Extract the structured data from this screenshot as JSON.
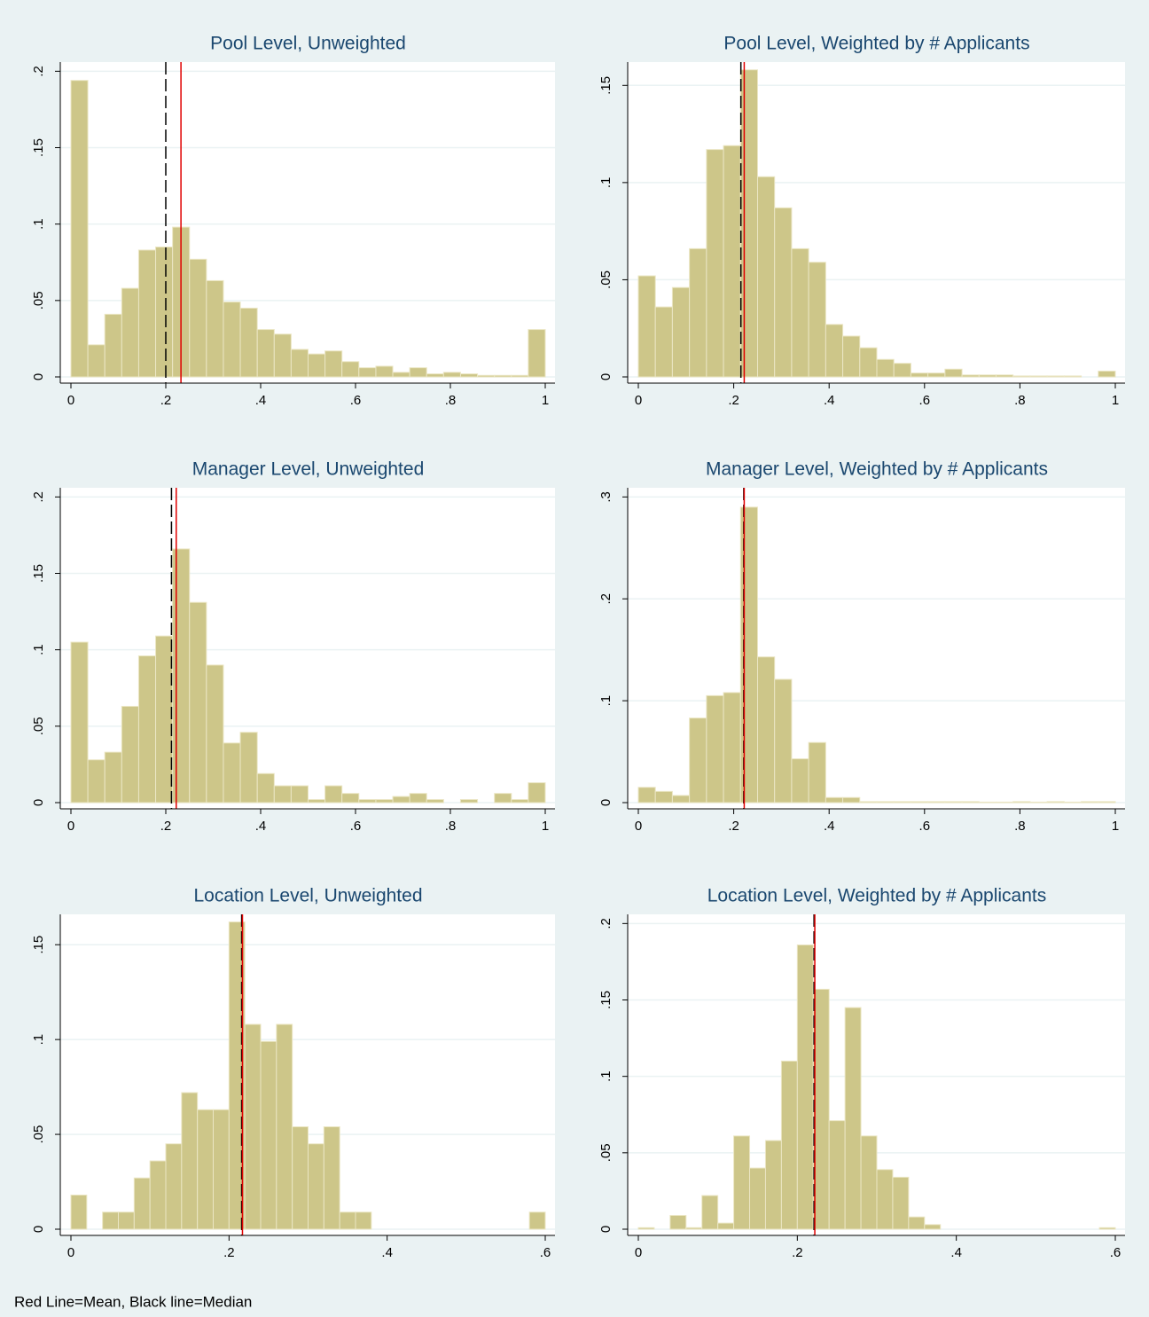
{
  "chart_data": [
    {
      "type": "histogram",
      "title": "Pool Level, Unweighted",
      "color": "#cdc689",
      "mean_color": "#e00000",
      "median_color": "#000000",
      "bins": [
        0,
        0.0357,
        0.0714,
        0.1071,
        0.1429,
        0.1786,
        0.2143,
        0.25,
        0.2857,
        0.3214,
        0.3571,
        0.3929,
        0.4286,
        0.4643,
        0.5,
        0.5357,
        0.5714,
        0.6071,
        0.6429,
        0.6786,
        0.7143,
        0.75,
        0.7857,
        0.8214,
        0.8571,
        0.8929,
        0.9286,
        0.9643,
        1
      ],
      "values": [
        0.194,
        0.021,
        0.041,
        0.058,
        0.083,
        0.085,
        0.098,
        0.077,
        0.063,
        0.049,
        0.045,
        0.031,
        0.028,
        0.018,
        0.015,
        0.017,
        0.01,
        0.006,
        0.007,
        0.003,
        0.006,
        0.002,
        0.003,
        0.002,
        0.001,
        0.001,
        0.001,
        0.031
      ],
      "mean": 0.232,
      "median": 0.2,
      "xlim": [
        0,
        1
      ],
      "ylim": [
        0,
        0.206
      ],
      "xticks": [
        0,
        {
          "value": 0.2,
          "label": ".2"
        },
        {
          "value": 0.4,
          "label": ".4"
        },
        {
          "value": 0.6,
          "label": ".6"
        },
        {
          "value": 0.8,
          "label": ".8"
        },
        1
      ],
      "yticks": [
        0,
        {
          "value": 0.05,
          "label": ".05"
        },
        {
          "value": 0.1,
          "label": ".1"
        },
        {
          "value": 0.15,
          "label": ".15"
        },
        {
          "value": 0.2,
          "label": ".2"
        }
      ],
      "grid": true
    },
    {
      "type": "histogram",
      "title": "Pool Level, Weighted by # Applicants",
      "color": "#cdc689",
      "mean_color": "#e00000",
      "median_color": "#000000",
      "bins": [
        0,
        0.0357,
        0.0714,
        0.1071,
        0.1429,
        0.1786,
        0.2143,
        0.25,
        0.2857,
        0.3214,
        0.3571,
        0.3929,
        0.4286,
        0.4643,
        0.5,
        0.5357,
        0.5714,
        0.6071,
        0.6429,
        0.6786,
        0.7143,
        0.75,
        0.7857,
        0.8214,
        0.8571,
        0.8929,
        0.9286,
        0.9643,
        1
      ],
      "values": [
        0.052,
        0.036,
        0.046,
        0.066,
        0.117,
        0.119,
        0.158,
        0.103,
        0.087,
        0.066,
        0.059,
        0.027,
        0.021,
        0.015,
        0.009,
        0.007,
        0.002,
        0.002,
        0.004,
        0.001,
        0.001,
        0.001,
        0.0005,
        0.0005,
        0.0005,
        0.0005,
        0,
        0.003
      ],
      "mean": 0.222,
      "median": 0.215,
      "xlim": [
        0,
        1
      ],
      "ylim": [
        0,
        0.162
      ],
      "xticks": [
        0,
        {
          "value": 0.2,
          "label": ".2"
        },
        {
          "value": 0.4,
          "label": ".4"
        },
        {
          "value": 0.6,
          "label": ".6"
        },
        {
          "value": 0.8,
          "label": ".8"
        },
        1
      ],
      "yticks": [
        0,
        {
          "value": 0.05,
          "label": ".05"
        },
        {
          "value": 0.1,
          "label": ".1"
        },
        {
          "value": 0.15,
          "label": ".15"
        }
      ],
      "grid": true
    },
    {
      "type": "histogram",
      "title": "Manager Level, Unweighted",
      "color": "#cdc689",
      "mean_color": "#e00000",
      "median_color": "#000000",
      "bins": [
        0,
        0.0357,
        0.0714,
        0.1071,
        0.1429,
        0.1786,
        0.2143,
        0.25,
        0.2857,
        0.3214,
        0.3571,
        0.3929,
        0.4286,
        0.4643,
        0.5,
        0.5357,
        0.5714,
        0.6071,
        0.6429,
        0.6786,
        0.7143,
        0.75,
        0.7857,
        0.8214,
        0.8571,
        0.8929,
        0.9286,
        0.9643,
        1
      ],
      "values": [
        0.105,
        0.028,
        0.033,
        0.063,
        0.096,
        0.109,
        0.166,
        0.131,
        0.09,
        0.039,
        0.046,
        0.019,
        0.011,
        0.011,
        0.002,
        0.011,
        0.006,
        0.002,
        0.002,
        0.004,
        0.006,
        0.002,
        0,
        0.002,
        0,
        0.006,
        0.002,
        0.013
      ],
      "mean": 0.222,
      "median": 0.212,
      "xlim": [
        0,
        1
      ],
      "ylim": [
        0,
        0.206
      ],
      "xticks": [
        0,
        {
          "value": 0.2,
          "label": ".2"
        },
        {
          "value": 0.4,
          "label": ".4"
        },
        {
          "value": 0.6,
          "label": ".6"
        },
        {
          "value": 0.8,
          "label": ".8"
        },
        1
      ],
      "yticks": [
        0,
        {
          "value": 0.05,
          "label": ".05"
        },
        {
          "value": 0.1,
          "label": ".1"
        },
        {
          "value": 0.15,
          "label": ".15"
        },
        {
          "value": 0.2,
          "label": ".2"
        }
      ],
      "grid": true
    },
    {
      "type": "histogram",
      "title": "Manager Level, Weighted by # Applicants",
      "color": "#cdc689",
      "mean_color": "#e00000",
      "median_color": "#000000",
      "bins": [
        0,
        0.0357,
        0.0714,
        0.1071,
        0.1429,
        0.1786,
        0.2143,
        0.25,
        0.2857,
        0.3214,
        0.3571,
        0.3929,
        0.4286,
        0.4643,
        0.5,
        0.5357,
        0.5714,
        0.6071,
        0.6429,
        0.6786,
        0.7143,
        0.75,
        0.7857,
        0.8214,
        0.8571,
        0.8929,
        0.9286,
        0.9643,
        1
      ],
      "values": [
        0.015,
        0.011,
        0.007,
        0.083,
        0.105,
        0.108,
        0.29,
        0.143,
        0.121,
        0.043,
        0.059,
        0.005,
        0.005,
        0.001,
        0.001,
        0.001,
        0.001,
        0.001,
        0.001,
        0.001,
        0.0005,
        0.0005,
        0.001,
        0.0005,
        0.001,
        0.0005,
        0.001,
        0.001
      ],
      "mean": 0.222,
      "median": 0.221,
      "xlim": [
        0,
        1
      ],
      "ylim": [
        0,
        0.309
      ],
      "xticks": [
        0,
        {
          "value": 0.2,
          "label": ".2"
        },
        {
          "value": 0.4,
          "label": ".4"
        },
        {
          "value": 0.6,
          "label": ".6"
        },
        {
          "value": 0.8,
          "label": ".8"
        },
        1
      ],
      "yticks": [
        0,
        {
          "value": 0.1,
          "label": ".1"
        },
        {
          "value": 0.2,
          "label": ".2"
        },
        {
          "value": 0.3,
          "label": ".3"
        }
      ],
      "grid": true
    },
    {
      "type": "histogram",
      "title": "Location Level, Unweighted",
      "color": "#cdc689",
      "mean_color": "#e00000",
      "median_color": "#000000",
      "bins": [
        0,
        0.02,
        0.04,
        0.06,
        0.08,
        0.1,
        0.12,
        0.14,
        0.16,
        0.18,
        0.2,
        0.22,
        0.24,
        0.26,
        0.28,
        0.3,
        0.32,
        0.34,
        0.36,
        0.38,
        0.4,
        0.42,
        0.44,
        0.46,
        0.48,
        0.5,
        0.52,
        0.54,
        0.56,
        0.58,
        0.6
      ],
      "values": [
        0.018,
        0,
        0.009,
        0.009,
        0.027,
        0.036,
        0.045,
        0.072,
        0.063,
        0.063,
        0.162,
        0.108,
        0.099,
        0.108,
        0.054,
        0.045,
        0.054,
        0.009,
        0.009,
        0,
        0,
        0,
        0,
        0,
        0,
        0,
        0,
        0,
        0,
        0.009
      ],
      "mean": 0.217,
      "median": 0.216,
      "xlim": [
        0,
        0.6
      ],
      "ylim": [
        0,
        0.166
      ],
      "xticks": [
        0,
        {
          "value": 0.2,
          "label": ".2"
        },
        {
          "value": 0.4,
          "label": ".4"
        },
        {
          "value": 0.6,
          "label": ".6"
        }
      ],
      "yticks": [
        0,
        {
          "value": 0.05,
          "label": ".05"
        },
        {
          "value": 0.1,
          "label": ".1"
        },
        {
          "value": 0.15,
          "label": ".15"
        }
      ],
      "grid": true
    },
    {
      "type": "histogram",
      "title": "Location Level, Weighted by # Applicants",
      "color": "#cdc689",
      "mean_color": "#e00000",
      "median_color": "#000000",
      "bins": [
        0,
        0.02,
        0.04,
        0.06,
        0.08,
        0.1,
        0.12,
        0.14,
        0.16,
        0.18,
        0.2,
        0.22,
        0.24,
        0.26,
        0.28,
        0.3,
        0.32,
        0.34,
        0.36,
        0.38,
        0.4,
        0.42,
        0.44,
        0.46,
        0.48,
        0.5,
        0.52,
        0.54,
        0.56,
        0.58,
        0.6
      ],
      "values": [
        0.001,
        0,
        0.009,
        0.001,
        0.022,
        0.004,
        0.061,
        0.04,
        0.058,
        0.11,
        0.186,
        0.157,
        0.071,
        0.145,
        0.061,
        0.039,
        0.034,
        0.008,
        0.003,
        0,
        0,
        0,
        0,
        0,
        0,
        0,
        0,
        0,
        0,
        0.001
      ],
      "mean": 0.222,
      "median": 0.221,
      "xlim": [
        0,
        0.6
      ],
      "ylim": [
        0,
        0.206
      ],
      "xticks": [
        0,
        {
          "value": 0.2,
          "label": ".2"
        },
        {
          "value": 0.4,
          "label": ".4"
        },
        {
          "value": 0.6,
          "label": ".6"
        }
      ],
      "yticks": [
        0,
        {
          "value": 0.05,
          "label": ".05"
        },
        {
          "value": 0.1,
          "label": ".1"
        },
        {
          "value": 0.15,
          "label": ".15"
        },
        {
          "value": 0.2,
          "label": ".2"
        }
      ],
      "grid": true
    }
  ],
  "note": "Red Line=Mean, Black line=Median"
}
